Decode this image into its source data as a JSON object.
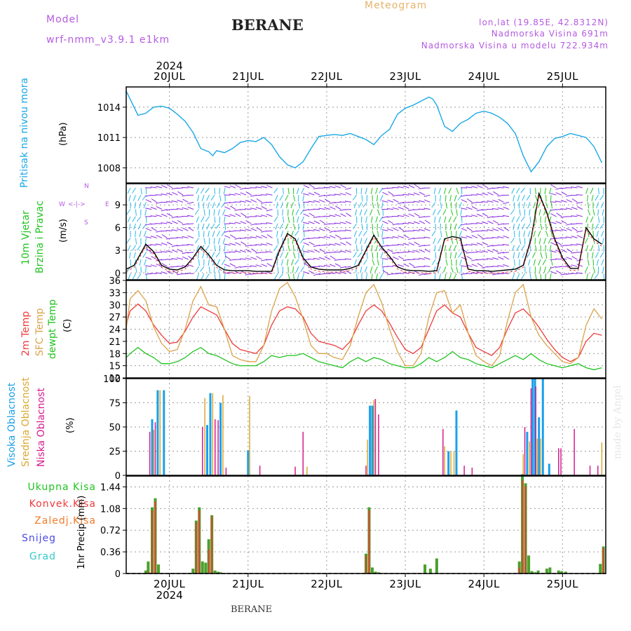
{
  "header": {
    "model_label": "Model",
    "model_name": "wrf-nmm_v3.9.1 e1km",
    "station": "BERANE",
    "meteogram_label": "Meteogram",
    "location": "lon,lat (19.85E, 42.8312N)",
    "elevation": "Nadmorska Visina 691m",
    "model_elevation": "Nadmorska Visina u modelu 722.934m"
  },
  "footer": {
    "station": "BERANE",
    "watermark": "made by Angel"
  },
  "colors": {
    "pressure": "#1aa8e6",
    "temp2m": "#ee3b3b",
    "sfc": "#dba24a",
    "dewpt": "#1fc41f",
    "high_cloud": "#1aa0ea",
    "mid_cloud": "#dba830",
    "low_cloud": "#d61c8e",
    "precip_total": "#4aa02c",
    "precip_conv": "#e8402e",
    "frz": "#f07a2a",
    "snow": "#4a4ae8",
    "hail": "#35c8c8",
    "label_purple": "#b45be0",
    "label_orange": "#e6b36b"
  },
  "x_axis": {
    "top_labels": [
      "20JUL",
      "21JUL",
      "22JUL",
      "23JUL",
      "24JUL",
      "25JUL"
    ],
    "year": "2024",
    "bottom_labels": [
      "20JUL",
      "21JUL",
      "22JUL",
      "23JUL",
      "24JUL",
      "25JUL"
    ],
    "bottom_year": "2024"
  },
  "panel_labels": {
    "pressure": "Pritisak na nivou mora",
    "pressure_unit": "(hPa)",
    "wind_1": "10m Vjetar",
    "wind_2": "Brzina i Pravac",
    "wind_unit": "(m/s)",
    "compass_n": "N",
    "compass_s": "S",
    "compass_w": "W",
    "compass_e": "E",
    "compass_arrows": "<-|->",
    "temp_2m": "2m Temp",
    "temp_sfc": "SFC Temp",
    "temp_dew": "dewpt Temp",
    "temp_unit": "(C)",
    "cloud_high": "Visoka Oblacnost",
    "cloud_mid": "Srednja Oblacnost",
    "cloud_low": "Niska Oblacnost",
    "cloud_unit": "(%)",
    "precip_total": "Ukupna Kisa",
    "precip_conv": "Konvek.Kisa",
    "precip_frz": "Zaledj.Kisa",
    "precip_snow": "Snijeg",
    "precip_hail": "Grad",
    "precip_axis": "1hr Precip (mm)"
  },
  "chart_data": [
    {
      "type": "line",
      "title": "",
      "ylabel": "Pritisak na nivou mora (hPa)",
      "ylim": [
        1006.5,
        1016.0
      ],
      "yticks": [
        1008,
        1011,
        1014
      ],
      "grid": true,
      "x_unit": "days since 2024-07-20 00:00",
      "xlim": [
        -0.55,
        5.55
      ],
      "series": [
        {
          "name": "Pritisak na nivou mora",
          "x": [
            -0.55,
            -0.45,
            -0.4,
            -0.3,
            -0.2,
            -0.1,
            0.0,
            0.1,
            0.2,
            0.3,
            0.4,
            0.5,
            0.55,
            0.6,
            0.7,
            0.8,
            0.9,
            1.0,
            1.1,
            1.2,
            1.3,
            1.4,
            1.5,
            1.6,
            1.7,
            1.8,
            1.9,
            2.0,
            2.1,
            2.2,
            2.3,
            2.4,
            2.5,
            2.6,
            2.7,
            2.8,
            2.9,
            3.0,
            3.1,
            3.2,
            3.3,
            3.35,
            3.4,
            3.5,
            3.6,
            3.7,
            3.8,
            3.9,
            4.0,
            4.1,
            4.2,
            4.3,
            4.4,
            4.5,
            4.6,
            4.7,
            4.8,
            4.9,
            5.0,
            5.1,
            5.2,
            5.3,
            5.4,
            5.5
          ],
          "values": [
            1015.6,
            1014.0,
            1013.2,
            1013.4,
            1014.0,
            1014.1,
            1013.9,
            1013.3,
            1012.6,
            1011.5,
            1009.9,
            1009.6,
            1009.2,
            1009.7,
            1009.5,
            1009.9,
            1010.5,
            1010.7,
            1010.6,
            1011.0,
            1010.3,
            1009.1,
            1008.3,
            1008.0,
            1008.6,
            1009.9,
            1011.1,
            1011.2,
            1011.3,
            1011.2,
            1011.4,
            1011.1,
            1010.8,
            1010.3,
            1011.2,
            1011.8,
            1013.3,
            1013.9,
            1014.2,
            1014.6,
            1015.0,
            1014.8,
            1014.2,
            1012.1,
            1011.6,
            1012.4,
            1012.8,
            1013.4,
            1013.6,
            1013.4,
            1013.0,
            1012.4,
            1011.4,
            1009.2,
            1007.6,
            1008.6,
            1010.1,
            1010.9,
            1011.1,
            1011.4,
            1011.2,
            1011.0,
            1010.1,
            1008.5
          ]
        }
      ]
    },
    {
      "type": "line",
      "title": "",
      "ylabel": "10m Vjetar Brzina i Pravac (m/s)",
      "ylim": [
        -0.9,
        11.8
      ],
      "yticks": [
        0,
        3,
        6,
        9
      ],
      "grid": true,
      "x_unit": "days since 2024-07-20 00:00",
      "xlim": [
        -0.55,
        5.55
      ],
      "series": [
        {
          "name": "10m Vjetar",
          "x": [
            -0.55,
            -0.45,
            -0.3,
            -0.2,
            -0.1,
            0.0,
            0.1,
            0.2,
            0.3,
            0.4,
            0.5,
            0.6,
            0.7,
            0.8,
            0.9,
            1.0,
            1.1,
            1.2,
            1.3,
            1.4,
            1.5,
            1.6,
            1.7,
            1.8,
            1.9,
            2.0,
            2.1,
            2.2,
            2.3,
            2.4,
            2.5,
            2.6,
            2.7,
            2.8,
            2.9,
            3.0,
            3.1,
            3.2,
            3.3,
            3.4,
            3.5,
            3.6,
            3.7,
            3.8,
            3.9,
            4.0,
            4.1,
            4.2,
            4.3,
            4.4,
            4.5,
            4.6,
            4.7,
            4.8,
            4.9,
            5.0,
            5.1,
            5.2,
            5.3,
            5.4,
            5.5
          ],
          "values": [
            0.5,
            1.0,
            3.8,
            2.8,
            1.0,
            0.5,
            0.4,
            0.8,
            2.0,
            3.5,
            2.4,
            1.0,
            0.4,
            0.3,
            0.3,
            0.3,
            0.2,
            0.2,
            0.2,
            3.0,
            5.2,
            4.5,
            2.0,
            0.8,
            0.5,
            0.4,
            0.4,
            0.4,
            0.6,
            1.0,
            3.0,
            5.0,
            3.4,
            2.2,
            0.8,
            0.4,
            0.3,
            0.3,
            0.2,
            0.3,
            4.5,
            4.8,
            4.6,
            0.5,
            0.3,
            0.3,
            0.2,
            0.3,
            0.4,
            0.5,
            1.0,
            4.5,
            10.5,
            8.0,
            4.5,
            2.0,
            0.6,
            0.6,
            6.0,
            4.5,
            3.8
          ]
        }
      ]
    },
    {
      "type": "line",
      "title": "",
      "ylabel": "(C)",
      "ylim": [
        12,
        36
      ],
      "yticks": [
        12,
        15,
        18,
        21,
        24,
        27,
        30,
        33,
        36
      ],
      "grid": true,
      "x_unit": "days since 2024-07-20 00:00",
      "xlim": [
        -0.55,
        5.55
      ],
      "series": [
        {
          "name": "2m Temp",
          "x": [
            -0.55,
            -0.5,
            -0.4,
            -0.3,
            -0.2,
            -0.1,
            0.0,
            0.1,
            0.2,
            0.3,
            0.4,
            0.5,
            0.6,
            0.7,
            0.8,
            0.9,
            1.0,
            1.1,
            1.2,
            1.3,
            1.4,
            1.5,
            1.6,
            1.7,
            1.8,
            1.9,
            2.0,
            2.1,
            2.2,
            2.3,
            2.4,
            2.5,
            2.6,
            2.7,
            2.8,
            2.9,
            3.0,
            3.1,
            3.2,
            3.3,
            3.4,
            3.5,
            3.6,
            3.7,
            3.8,
            3.9,
            4.0,
            4.1,
            4.2,
            4.3,
            4.4,
            4.5,
            4.6,
            4.7,
            4.8,
            4.9,
            5.0,
            5.1,
            5.2,
            5.3,
            5.4,
            5.5
          ],
          "values": [
            25.0,
            28.5,
            30.2,
            28.5,
            25.0,
            22.5,
            20.5,
            20.8,
            23.5,
            27.0,
            29.5,
            28.5,
            27.5,
            24.0,
            20.5,
            19.0,
            18.5,
            18.0,
            20.0,
            25.0,
            28.5,
            29.5,
            29.0,
            27.0,
            23.0,
            21.0,
            20.5,
            20.0,
            19.0,
            21.0,
            25.0,
            28.5,
            30.0,
            28.5,
            25.5,
            22.0,
            19.0,
            18.0,
            19.5,
            24.0,
            28.5,
            30.0,
            28.0,
            27.0,
            23.0,
            19.5,
            18.5,
            17.5,
            19.5,
            24.0,
            28.0,
            29.0,
            27.0,
            24.5,
            21.5,
            19.0,
            17.0,
            16.0,
            17.0,
            21.0,
            23.0,
            22.5
          ]
        },
        {
          "name": "SFC Temp",
          "x": [
            -0.55,
            -0.5,
            -0.4,
            -0.3,
            -0.2,
            -0.1,
            0.0,
            0.1,
            0.2,
            0.3,
            0.4,
            0.5,
            0.6,
            0.7,
            0.8,
            0.9,
            1.0,
            1.1,
            1.2,
            1.3,
            1.4,
            1.5,
            1.6,
            1.7,
            1.8,
            1.9,
            2.0,
            2.1,
            2.2,
            2.3,
            2.4,
            2.5,
            2.6,
            2.7,
            2.8,
            2.9,
            3.0,
            3.1,
            3.2,
            3.3,
            3.4,
            3.5,
            3.6,
            3.7,
            3.8,
            3.9,
            4.0,
            4.1,
            4.2,
            4.3,
            4.4,
            4.5,
            4.6,
            4.7,
            4.8,
            4.9,
            5.0,
            5.1,
            5.2,
            5.3,
            5.4,
            5.5
          ],
          "values": [
            24.0,
            31.5,
            33.5,
            31.0,
            24.5,
            20.5,
            18.5,
            19.0,
            24.0,
            31.0,
            34.5,
            30.0,
            29.5,
            24.0,
            17.5,
            16.5,
            16.0,
            16.0,
            20.0,
            28.5,
            34.0,
            35.5,
            32.0,
            26.5,
            20.0,
            18.0,
            18.0,
            17.0,
            16.5,
            20.0,
            27.0,
            33.0,
            35.0,
            30.5,
            24.0,
            18.5,
            15.0,
            15.0,
            18.0,
            27.0,
            33.0,
            33.5,
            28.0,
            30.0,
            23.0,
            17.5,
            16.0,
            15.0,
            17.5,
            26.0,
            33.0,
            35.0,
            27.0,
            22.5,
            20.0,
            18.0,
            16.0,
            15.5,
            17.0,
            25.0,
            29.0,
            26.5
          ]
        },
        {
          "name": "dewpt Temp",
          "x": [
            -0.55,
            -0.5,
            -0.4,
            -0.3,
            -0.2,
            -0.1,
            0.0,
            0.1,
            0.2,
            0.3,
            0.4,
            0.5,
            0.6,
            0.7,
            0.8,
            0.9,
            1.0,
            1.1,
            1.2,
            1.3,
            1.4,
            1.5,
            1.6,
            1.7,
            1.8,
            1.9,
            2.0,
            2.1,
            2.2,
            2.3,
            2.4,
            2.5,
            2.6,
            2.7,
            2.8,
            2.9,
            3.0,
            3.1,
            3.2,
            3.3,
            3.4,
            3.5,
            3.6,
            3.7,
            3.8,
            3.9,
            4.0,
            4.1,
            4.2,
            4.3,
            4.4,
            4.5,
            4.6,
            4.7,
            4.8,
            4.9,
            5.0,
            5.1,
            5.2,
            5.3,
            5.4,
            5.5
          ],
          "values": [
            17.0,
            18.0,
            19.5,
            18.0,
            17.0,
            15.5,
            15.5,
            16.0,
            17.0,
            18.5,
            19.5,
            18.0,
            17.5,
            16.5,
            15.5,
            15.0,
            15.0,
            15.0,
            16.0,
            17.5,
            17.0,
            17.5,
            17.5,
            18.0,
            17.0,
            16.0,
            15.5,
            15.0,
            14.5,
            16.0,
            17.0,
            16.0,
            17.0,
            16.5,
            15.5,
            15.0,
            14.5,
            14.5,
            15.5,
            17.0,
            16.0,
            17.0,
            18.5,
            17.0,
            16.5,
            15.5,
            15.0,
            14.5,
            15.5,
            16.5,
            17.5,
            16.5,
            18.0,
            16.5,
            15.5,
            15.0,
            14.5,
            15.0,
            15.5,
            14.5,
            14.0,
            14.5
          ]
        }
      ]
    },
    {
      "type": "bar",
      "title": "",
      "ylabel": "(%)",
      "ylim": [
        0,
        100
      ],
      "yticks": [
        0,
        25,
        50,
        75,
        100
      ],
      "grid": true,
      "x_unit": "days since 2024-07-20 00:00",
      "xlim": [
        -0.55,
        5.55
      ],
      "series": [
        {
          "name": "Visoka Oblacnost",
          "x": [
            -0.22,
            -0.15,
            -0.07,
            0.48,
            0.52,
            0.65,
            1.0,
            2.55,
            2.58,
            3.55,
            3.65,
            4.55,
            4.62,
            4.65,
            4.7,
            4.75,
            4.83
          ],
          "values": [
            58,
            88,
            88,
            52,
            85,
            75,
            26,
            72,
            72,
            25,
            67,
            45,
            100,
            100,
            60,
            100,
            12
          ]
        },
        {
          "name": "Srednja Oblacnost",
          "x": [
            -0.2,
            -0.12,
            0.45,
            0.55,
            0.68,
            1.02,
            1.75,
            2.52,
            2.6,
            3.5,
            3.58,
            3.62,
            4.5,
            4.58,
            4.68,
            4.72,
            5.5
          ],
          "values": [
            47,
            88,
            80,
            85,
            83,
            82,
            9,
            37,
            78,
            30,
            25,
            25,
            22,
            35,
            38,
            38,
            34
          ]
        },
        {
          "name": "Niska Oblacnost",
          "x": [
            -0.25,
            -0.18,
            0.42,
            0.58,
            0.62,
            0.72,
            1.15,
            1.6,
            1.7,
            2.5,
            2.62,
            2.66,
            3.48,
            3.75,
            3.85,
            4.52,
            4.6,
            4.66,
            4.95,
            4.98,
            5.15,
            5.35,
            5.45
          ],
          "values": [
            45,
            55,
            50,
            58,
            57,
            8,
            10,
            9,
            45,
            10,
            79,
            63,
            48,
            10,
            8,
            50,
            90,
            92,
            28,
            28,
            48,
            10,
            10
          ]
        }
      ]
    },
    {
      "type": "bar",
      "title": "",
      "ylabel": "1hr Precip (mm)",
      "ylim": [
        0,
        1.62
      ],
      "yticks": [
        0,
        0.36,
        0.72,
        1.08,
        1.44
      ],
      "grid": true,
      "x_unit": "days since 2024-07-20 00:00",
      "xlim": [
        -0.55,
        5.55
      ],
      "series": [
        {
          "name": "Ukupna Kisa",
          "x": [
            -0.3,
            -0.27,
            -0.22,
            -0.18,
            -0.14,
            0.3,
            0.34,
            0.38,
            0.42,
            0.46,
            0.5,
            0.54,
            0.58,
            0.62,
            0.65,
            2.5,
            2.54,
            2.58,
            2.62,
            2.66,
            3.25,
            3.32,
            3.4,
            4.45,
            4.49,
            4.53,
            4.57,
            4.61,
            4.65,
            4.69,
            4.8,
            4.84,
            4.95,
            4.99,
            5.04,
            5.48,
            5.52
          ],
          "values": [
            0.05,
            0.2,
            1.1,
            1.25,
            0.15,
            0.08,
            0.88,
            1.1,
            0.2,
            0.18,
            0.57,
            0.97,
            0.05,
            0.03,
            0.02,
            0.33,
            1.1,
            0.1,
            0.03,
            0.02,
            0.15,
            0.08,
            0.25,
            0.2,
            1.65,
            1.5,
            0.3,
            0.04,
            0.02,
            0.05,
            0.08,
            0.1,
            0.05,
            0.04,
            0.03,
            0.16,
            0.45
          ]
        },
        {
          "name": "Konvek.Kisa",
          "x": [
            -0.27,
            -0.22,
            -0.18,
            0.34,
            0.38,
            0.5,
            0.54,
            2.5,
            2.54,
            4.45,
            4.49,
            4.53,
            5.52
          ],
          "values": [
            0.03,
            1.05,
            1.2,
            0.85,
            1.05,
            0.4,
            0.95,
            0.3,
            1.05,
            0.1,
            1.55,
            1.45,
            0.42
          ]
        }
      ]
    }
  ]
}
